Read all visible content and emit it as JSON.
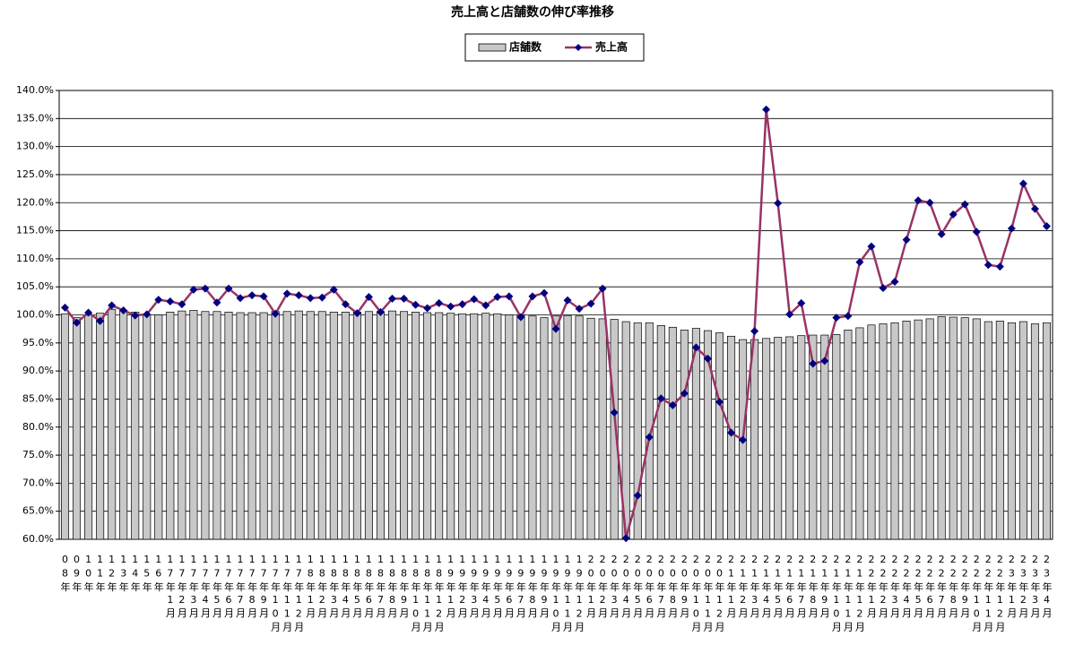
{
  "chart_data": {
    "type": "bar",
    "title": "売上高と店舗数の伸び率推移",
    "categories": [
      "08年",
      "09年",
      "10年",
      "11年",
      "12年",
      "13年",
      "14年",
      "15年",
      "16年",
      "17年1月",
      "17年2月",
      "17年3月",
      "17年4月",
      "17年5月",
      "17年6月",
      "17年7月",
      "17年8月",
      "17年9月",
      "17年10月",
      "17年11月",
      "17年12月",
      "18年1月",
      "18年2月",
      "18年3月",
      "18年4月",
      "18年5月",
      "18年6月",
      "18年7月",
      "18年8月",
      "18年9月",
      "18年10月",
      "18年11月",
      "18年12月",
      "19年1月",
      "19年2月",
      "19年3月",
      "19年4月",
      "19年5月",
      "19年6月",
      "19年7月",
      "19年8月",
      "19年9月",
      "19年10月",
      "19年11月",
      "19年12月",
      "20年1月",
      "20年2月",
      "20年3月",
      "20年4月",
      "20年5月",
      "20年6月",
      "20年7月",
      "20年8月",
      "20年9月",
      "20年10月",
      "20年11月",
      "20年12月",
      "21年1月",
      "21年2月",
      "21年3月",
      "21年4月",
      "21年5月",
      "21年6月",
      "21年7月",
      "21年8月",
      "21年9月",
      "21年10月",
      "21年11月",
      "21年12月",
      "22年1月",
      "22年2月",
      "22年3月",
      "22年4月",
      "22年5月",
      "22年6月",
      "22年7月",
      "22年8月",
      "22年9月",
      "22年10月",
      "22年11月",
      "22年12月",
      "23年1月",
      "23年2月",
      "23年3月",
      "23年4月"
    ],
    "series": [
      {
        "name": "店舗数",
        "type": "bar",
        "color": "#c8c8c8",
        "values": [
          100.2,
          99.5,
          100.0,
          100.3,
          101.0,
          100.8,
          100.5,
          100.0,
          100.0,
          100.5,
          100.7,
          100.8,
          100.6,
          100.6,
          100.5,
          100.4,
          100.4,
          100.4,
          100.6,
          100.6,
          100.7,
          100.6,
          100.6,
          100.5,
          100.5,
          100.5,
          100.6,
          100.6,
          100.7,
          100.6,
          100.5,
          100.4,
          100.4,
          100.3,
          100.2,
          100.2,
          100.3,
          100.2,
          100.0,
          99.9,
          99.8,
          99.5,
          99.8,
          99.9,
          99.8,
          99.4,
          99.3,
          99.2,
          98.8,
          98.6,
          98.6,
          98.1,
          97.8,
          97.3,
          97.6,
          97.2,
          96.8,
          96.2,
          95.6,
          95.6,
          95.8,
          96.0,
          96.1,
          96.3,
          96.4,
          96.4,
          96.5,
          97.3,
          97.7,
          98.2,
          98.4,
          98.6,
          98.9,
          99.1,
          99.3,
          99.7,
          99.6,
          99.5,
          99.3,
          98.8,
          98.9,
          98.6,
          98.8,
          98.4,
          98.6
        ]
      },
      {
        "name": "売上高",
        "type": "line",
        "color": "#993366",
        "marker_color": "#000080",
        "values": [
          101.3,
          98.6,
          100.4,
          98.9,
          101.7,
          100.8,
          99.9,
          100.1,
          102.7,
          102.4,
          101.9,
          104.5,
          104.7,
          102.2,
          104.7,
          103.0,
          103.5,
          103.3,
          100.2,
          103.8,
          103.5,
          103.0,
          103.1,
          104.5,
          101.9,
          100.3,
          103.2,
          100.5,
          102.9,
          102.9,
          101.8,
          101.2,
          102.1,
          101.5,
          101.9,
          102.8,
          101.7,
          103.2,
          103.3,
          99.6,
          103.3,
          103.9,
          97.5,
          102.6,
          101.1,
          102.0,
          104.7,
          82.6,
          60.2,
          67.8,
          78.2,
          85.1,
          83.9,
          86.0,
          94.2,
          92.2,
          84.5,
          79.0,
          77.7,
          97.1,
          136.6,
          119.9,
          100.1,
          102.1,
          91.3,
          91.8,
          99.5,
          99.8,
          109.4,
          112.2,
          104.8,
          105.9,
          113.4,
          120.4,
          120.0,
          114.4,
          117.9,
          119.7,
          114.8,
          108.9,
          108.6,
          115.4,
          123.4,
          118.9,
          115.8
        ]
      }
    ],
    "ylim": [
      60,
      140
    ],
    "yticks": [
      {
        "value": 60,
        "label": "60.0%"
      },
      {
        "value": 65,
        "label": "65.0%"
      },
      {
        "value": 70,
        "label": "70.0%"
      },
      {
        "value": 75,
        "label": "75.0%"
      },
      {
        "value": 80,
        "label": "80.0%"
      },
      {
        "value": 85,
        "label": "85.0%"
      },
      {
        "value": 90,
        "label": "90.0%"
      },
      {
        "value": 95,
        "label": "95.0%"
      },
      {
        "value": 100,
        "label": "100.0%"
      },
      {
        "value": 105,
        "label": "105.0%"
      },
      {
        "value": 110,
        "label": "110.0%"
      },
      {
        "value": 115,
        "label": "115.0%"
      },
      {
        "value": 120,
        "label": "120.0%"
      },
      {
        "value": 125,
        "label": "125.0%"
      },
      {
        "value": 130,
        "label": "130.0%"
      },
      {
        "value": 135,
        "label": "135.0%"
      },
      {
        "value": 140,
        "label": "140.0%"
      }
    ],
    "grid": true
  }
}
